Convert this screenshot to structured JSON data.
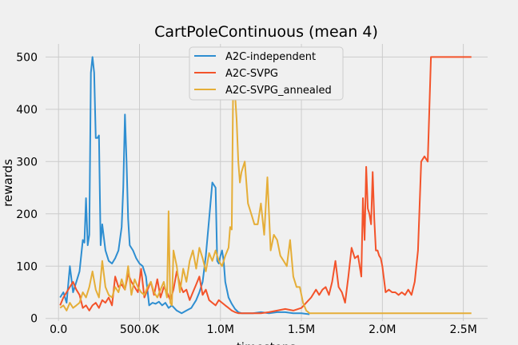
{
  "chart_data": {
    "type": "line",
    "title": "CartPoleContinuous (mean 4)",
    "xlabel": "timesteps",
    "ylabel": "rewards",
    "xlim": [
      -80000,
      2650000
    ],
    "ylim": [
      -5,
      525
    ],
    "xticks": [
      0,
      500000,
      1000000,
      1500000,
      2000000,
      2500000
    ],
    "xtick_labels": [
      "0.0",
      "500.0K",
      "1.0M",
      "1.5M",
      "2.0M",
      "2.5M"
    ],
    "yticks": [
      0,
      100,
      200,
      300,
      400,
      500
    ],
    "ytick_labels": [
      "0",
      "100",
      "200",
      "300",
      "400",
      "500"
    ],
    "grid": true,
    "legend_position": "top-center",
    "series": [
      {
        "name": "A2C-independent",
        "color": "#2e8ed1",
        "x": [
          10000,
          30000,
          50000,
          70000,
          90000,
          110000,
          130000,
          150000,
          160000,
          170000,
          180000,
          190000,
          200000,
          210000,
          220000,
          230000,
          240000,
          250000,
          260000,
          270000,
          290000,
          310000,
          330000,
          350000,
          370000,
          390000,
          400000,
          410000,
          420000,
          430000,
          440000,
          460000,
          480000,
          500000,
          520000,
          540000,
          560000,
          580000,
          600000,
          620000,
          640000,
          660000,
          680000,
          700000,
          730000,
          760000,
          790000,
          820000,
          850000,
          870000,
          890000,
          910000,
          930000,
          950000,
          970000,
          980000,
          990000,
          1000000,
          1010000,
          1020000,
          1030000,
          1050000,
          1070000,
          1090000,
          1110000,
          1130000,
          1150000,
          1200000,
          1250000,
          1300000,
          1350000,
          1400000,
          1450000,
          1500000,
          1550000
        ],
        "y": [
          40,
          50,
          30,
          100,
          50,
          70,
          90,
          150,
          145,
          230,
          140,
          160,
          470,
          500,
          470,
          345,
          345,
          350,
          140,
          180,
          130,
          110,
          105,
          115,
          130,
          175,
          250,
          390,
          300,
          190,
          140,
          130,
          115,
          105,
          100,
          80,
          25,
          30,
          28,
          32,
          25,
          30,
          20,
          25,
          15,
          10,
          15,
          20,
          35,
          50,
          70,
          120,
          190,
          260,
          250,
          110,
          105,
          120,
          130,
          110,
          70,
          40,
          28,
          18,
          12,
          10,
          10,
          10,
          12,
          10,
          12,
          12,
          10,
          10,
          8
        ]
      },
      {
        "name": "A2C-SVPG",
        "color": "#f3532a",
        "x": [
          10000,
          30000,
          50000,
          70000,
          90000,
          110000,
          130000,
          150000,
          170000,
          190000,
          210000,
          230000,
          250000,
          270000,
          290000,
          310000,
          330000,
          350000,
          370000,
          390000,
          410000,
          430000,
          450000,
          470000,
          490000,
          510000,
          530000,
          550000,
          570000,
          590000,
          610000,
          630000,
          650000,
          670000,
          690000,
          710000,
          730000,
          750000,
          770000,
          790000,
          810000,
          830000,
          850000,
          870000,
          890000,
          910000,
          930000,
          950000,
          970000,
          990000,
          1010000,
          1030000,
          1050000,
          1070000,
          1090000,
          1110000,
          1150000,
          1200000,
          1250000,
          1300000,
          1350000,
          1400000,
          1450000,
          1500000,
          1530000,
          1560000,
          1590000,
          1610000,
          1630000,
          1650000,
          1670000,
          1690000,
          1710000,
          1730000,
          1750000,
          1770000,
          1790000,
          1810000,
          1830000,
          1850000,
          1870000,
          1880000,
          1890000,
          1900000,
          1910000,
          1920000,
          1930000,
          1940000,
          1950000,
          1960000,
          1970000,
          1980000,
          1990000,
          2000000,
          2020000,
          2040000,
          2060000,
          2080000,
          2100000,
          2120000,
          2140000,
          2160000,
          2180000,
          2200000,
          2220000,
          2240000,
          2260000,
          2280000,
          2300000,
          2320000,
          2330000,
          2340000,
          2350000,
          2360000,
          2380000,
          2400000,
          2450000,
          2500000,
          2550000
        ],
        "y": [
          25,
          40,
          50,
          60,
          70,
          55,
          45,
          20,
          25,
          15,
          25,
          30,
          20,
          35,
          30,
          40,
          25,
          80,
          60,
          65,
          55,
          85,
          70,
          60,
          50,
          95,
          40,
          55,
          70,
          45,
          75,
          40,
          60,
          50,
          35,
          55,
          90,
          65,
          50,
          55,
          35,
          50,
          65,
          80,
          45,
          55,
          35,
          30,
          25,
          35,
          30,
          25,
          20,
          15,
          12,
          10,
          10,
          10,
          10,
          12,
          15,
          18,
          15,
          20,
          30,
          40,
          55,
          45,
          55,
          60,
          45,
          70,
          110,
          60,
          50,
          30,
          80,
          135,
          115,
          120,
          80,
          230,
          150,
          290,
          210,
          200,
          180,
          280,
          190,
          130,
          130,
          120,
          115,
          100,
          50,
          55,
          50,
          50,
          45,
          50,
          45,
          55,
          45,
          70,
          130,
          300,
          310,
          300,
          500,
          500,
          500,
          500,
          500,
          500,
          500,
          500,
          500,
          500,
          500
        ],
        "_note": null
      },
      {
        "name": "A2C-SVPG_annealed",
        "color": "#e5ae38",
        "x": [
          10000,
          30000,
          50000,
          70000,
          90000,
          110000,
          130000,
          150000,
          170000,
          190000,
          210000,
          230000,
          250000,
          270000,
          290000,
          310000,
          330000,
          350000,
          370000,
          390000,
          410000,
          430000,
          450000,
          470000,
          490000,
          510000,
          530000,
          550000,
          570000,
          590000,
          610000,
          630000,
          650000,
          670000,
          680000,
          690000,
          700000,
          710000,
          730000,
          750000,
          770000,
          790000,
          810000,
          830000,
          850000,
          870000,
          890000,
          910000,
          930000,
          950000,
          970000,
          990000,
          1010000,
          1030000,
          1050000,
          1060000,
          1070000,
          1080000,
          1090000,
          1100000,
          1110000,
          1120000,
          1130000,
          1150000,
          1170000,
          1190000,
          1210000,
          1230000,
          1250000,
          1270000,
          1290000,
          1310000,
          1330000,
          1350000,
          1370000,
          1390000,
          1410000,
          1430000,
          1450000,
          1470000,
          1490000,
          1510000,
          1530000,
          1550000,
          1600000,
          1700000,
          1800000,
          1900000,
          2000000,
          2100000,
          2200000,
          2300000,
          2400000,
          2500000,
          2550000
        ],
        "y": [
          20,
          25,
          15,
          30,
          20,
          25,
          30,
          50,
          40,
          60,
          90,
          55,
          40,
          110,
          60,
          45,
          40,
          60,
          50,
          75,
          55,
          100,
          45,
          75,
          60,
          50,
          45,
          60,
          70,
          50,
          40,
          55,
          70,
          40,
          205,
          30,
          25,
          130,
          100,
          50,
          95,
          70,
          110,
          130,
          95,
          135,
          115,
          90,
          125,
          110,
          130,
          110,
          100,
          120,
          135,
          175,
          170,
          500,
          430,
          380,
          300,
          260,
          280,
          300,
          220,
          200,
          180,
          180,
          220,
          160,
          270,
          130,
          160,
          150,
          120,
          110,
          100,
          150,
          80,
          60,
          60,
          30,
          15,
          10,
          10,
          10,
          10,
          10,
          10,
          10,
          10,
          10,
          10,
          10,
          10
        ]
      }
    ]
  }
}
